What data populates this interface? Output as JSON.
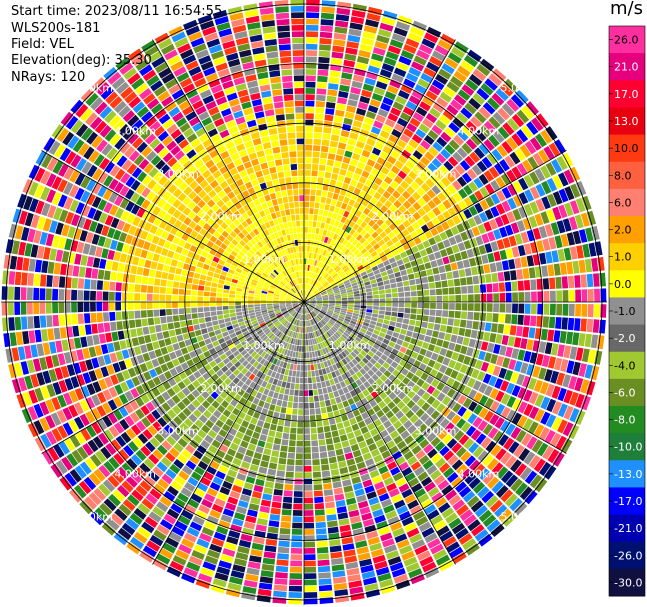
{
  "header": {
    "start_time": "Start time: 2023/08/11 16:54:55",
    "instrument": "WLS200s-181",
    "field": "Field: VEL",
    "elevation": "Elevation(deg): 35.30",
    "nrays": "NRays: 120"
  },
  "chart_data": {
    "type": "heatmap",
    "projection": "polar PPI",
    "n_rays": 120,
    "range_ring_labels": [
      "1.00km",
      "2.00km",
      "3.00km",
      "4.00km",
      "5.00km"
    ],
    "colorbar": {
      "unit": "m/s",
      "tick_labels": [
        "26.0",
        "21.0",
        "17.0",
        "13.0",
        "10.0",
        "8.0",
        "6.0",
        "2.0",
        "1.0",
        "0.0",
        "-1.0",
        "-2.0",
        "-4.0",
        "-6.0",
        "-8.0",
        "-10.0",
        "-13.0",
        "-17.0",
        "-21.0",
        "-26.0",
        "-30.0"
      ],
      "colors": [
        "#ff2fa0",
        "#e6007e",
        "#ff0030",
        "#e80010",
        "#ff3a10",
        "#ff6040",
        "#ff8070",
        "#ffa000",
        "#ffd000",
        "#ffff00",
        "#909090",
        "#686868",
        "#a0c830",
        "#6b8e23",
        "#228b22",
        "#1e7f3a",
        "#1e90ff",
        "#0000ff",
        "#0000b0",
        "#001070",
        "#101040"
      ]
    }
  }
}
